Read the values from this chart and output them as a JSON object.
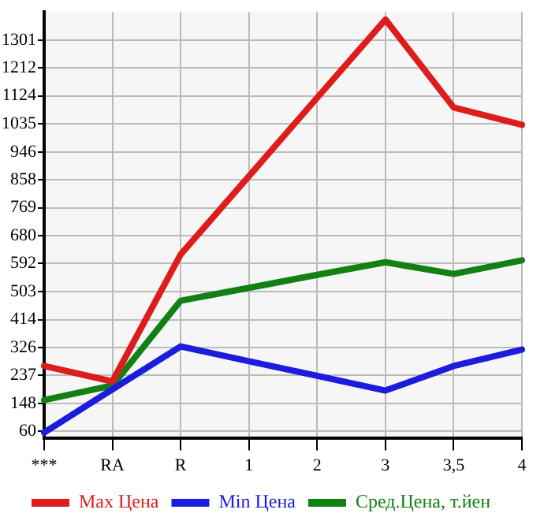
{
  "chart_data": {
    "type": "line",
    "categories": [
      "***",
      "RA",
      "R",
      "1",
      "2",
      "3",
      "3,5",
      "4"
    ],
    "series": [
      {
        "name": "Max Цена",
        "color": "#dd1c1c",
        "values": [
          267,
          218,
          621,
          869,
          1118,
          1366,
          1087,
          1032
        ]
      },
      {
        "name": "Min Цена",
        "color": "#1c1cdd",
        "values": [
          56,
          193,
          329,
          282,
          236,
          189,
          267,
          319
        ]
      },
      {
        "name": "Сред.Цена, т.йен",
        "color": "#128012",
        "values": [
          159,
          205,
          474,
          515,
          556,
          596,
          559,
          602
        ]
      }
    ],
    "ylim": [
      39,
      1390
    ],
    "yticks": [
      60,
      148,
      237,
      326,
      414,
      503,
      592,
      680,
      769,
      858,
      946,
      1035,
      1124,
      1212,
      1301
    ],
    "grid": true,
    "legend": "bottom",
    "marker": "none",
    "line_style": "solid"
  }
}
